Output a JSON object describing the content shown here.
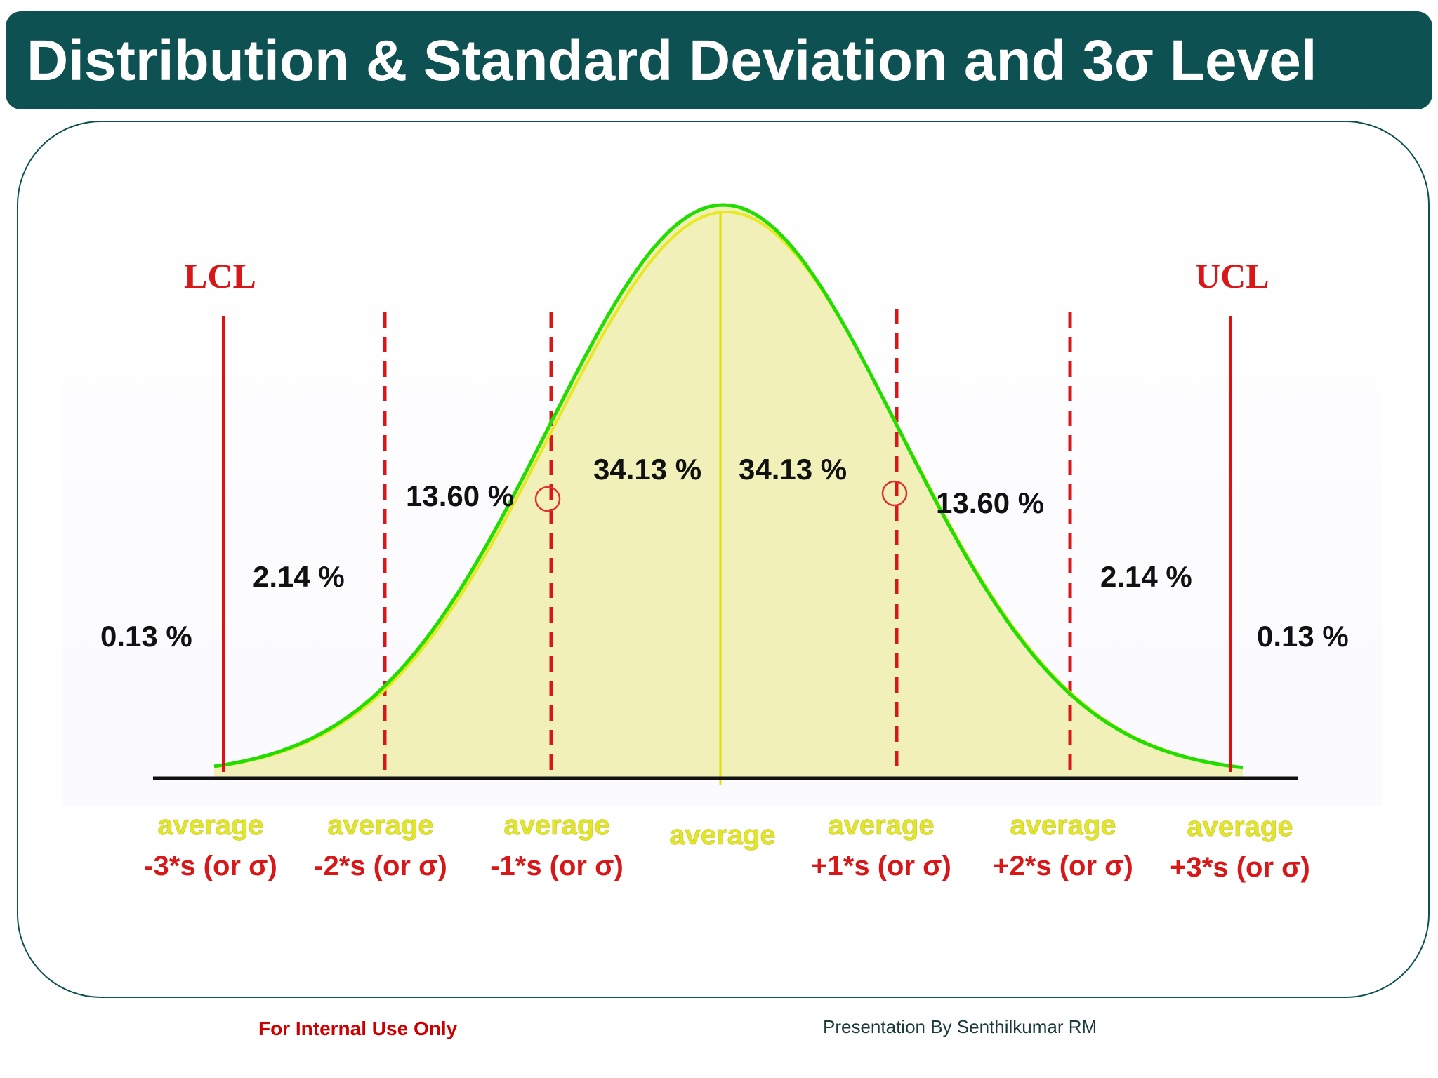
{
  "header": {
    "title": "Distribution & Standard Deviation and 3σ Level"
  },
  "limits": {
    "lcl": "LCL",
    "ucl": "UCL"
  },
  "regions": [
    {
      "label": "0.13 %"
    },
    {
      "label": "2.14 %"
    },
    {
      "label": "13.60 %"
    },
    {
      "label": "34.13 %"
    },
    {
      "label": "34.13 %"
    },
    {
      "label": "13.60 %"
    },
    {
      "label": "2.14 %"
    },
    {
      "label": "0.13 %"
    }
  ],
  "axis_labels": [
    {
      "top": "average",
      "bottom": "-3*s (or σ)"
    },
    {
      "top": "average",
      "bottom": "-2*s (or σ)"
    },
    {
      "top": "average",
      "bottom": "-1*s (or σ)"
    },
    {
      "top": "average",
      "bottom": ""
    },
    {
      "top": "average",
      "bottom": "+1*s (or σ)"
    },
    {
      "top": "average",
      "bottom": "+2*s (or σ)"
    },
    {
      "top": "average",
      "bottom": "+3*s (or σ)"
    }
  ],
  "colors": {
    "header_bg": "#0d5152",
    "curve": "#22dd00",
    "curve_inner": "#e8e820",
    "fill": "#f0f0b8",
    "limit_red": "#d81818",
    "avg_yellow": "#e2e62a"
  },
  "footer": {
    "left": "For Internal Use Only",
    "right": "Presentation By Senthilkumar RM"
  }
}
